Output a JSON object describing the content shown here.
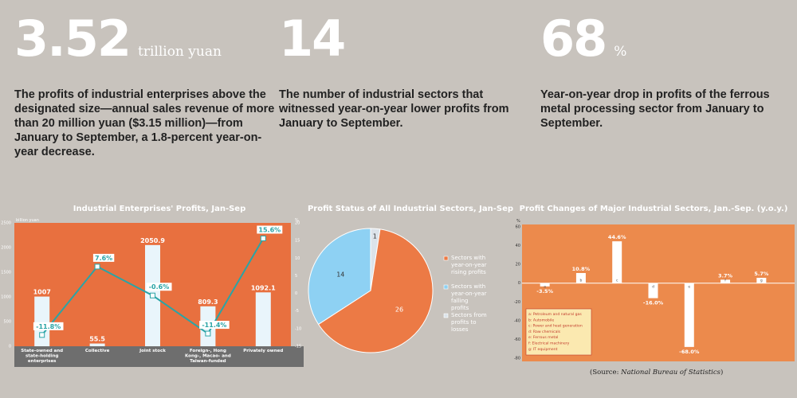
{
  "stats": [
    {
      "value": "3.52",
      "unit": "trillion yuan",
      "desc": "The profits of industrial enterprises above the designated size—annual sales revenue of more than 20 million yuan ($3.15 million)—from January to September, a 1.8-percent year-on-year decrease."
    },
    {
      "value": "14",
      "unit": "",
      "desc": "The number of industrial sectors that witnessed year-on-year lower profits from January to September."
    },
    {
      "value": "68",
      "unit": "%",
      "desc": "Year-on-year drop in profits of the ferrous metal processing sector from January to September."
    }
  ],
  "chart1": {
    "title": "Industrial Enterprises' Profits, Jan-Sep",
    "left_unit": "billion yuan",
    "right_unit": "%"
  },
  "chart2": {
    "title": "Profit Status of All Industrial Sectors, Jan-Sep"
  },
  "chart3": {
    "title": "Profit Changes of Major Industrial Sectors, Jan.-Sep. (y.o.y.)",
    "unit": "%"
  },
  "source": {
    "prefix": "(Source: ",
    "name": "National Bureau of Statistics",
    "suffix": ")"
  },
  "colors": {
    "background": "#c8c3bd",
    "orange_panel": "#e8703f",
    "light_orange_panel": "#ec8a4c",
    "bar_light": "#e9f5fb",
    "line_teal": "#2aa4a6",
    "pie_orange": "#ec7a45",
    "pie_blue": "#8ed1f3",
    "pie_gray": "#dce3ea",
    "footer": "#6e6e6e",
    "legend_box": "#fbe9b0"
  },
  "chart_data": [
    {
      "type": "bar",
      "title": "Industrial Enterprises' Profits, Jan-Sep",
      "categories": [
        "State-owned and state-holding enterprises",
        "Collective",
        "Joint stock",
        "Foreign-, Hong Kong-, Macao- and Taiwan-funded",
        "Privately owned"
      ],
      "series": [
        {
          "values": [
            1007,
            55.5,
            2050.9,
            809.3,
            1092.1
          ],
          "value_labels": [
            "1007",
            "55.5",
            "2050.9",
            "809.3",
            "1092.1"
          ]
        },
        {
          "kind": "line",
          "axis": "right",
          "values": [
            -11.8,
            7.6,
            -0.6,
            -11.4,
            15.6
          ],
          "value_labels": [
            "-11.8%",
            "7.6%",
            "-0.6%",
            "-11.4%",
            "15.6%"
          ]
        }
      ],
      "ylabel": "billion yuan",
      "y2label": "%",
      "ylim": [
        0,
        2500
      ],
      "y2lim": [
        -15,
        20
      ],
      "yticks": [
        "0",
        "500",
        "1000",
        "1500",
        "2000",
        "2500"
      ],
      "y2ticks": [
        "-15",
        "-10",
        "-5",
        "0",
        "5",
        "10",
        "15",
        "20"
      ]
    },
    {
      "type": "pie",
      "title": "Profit Status of All Industrial Sectors, Jan-Sep",
      "labels": [
        "Sectors with year-on-year rising profits",
        "Sectors with year-on-year falling profits",
        "Sectors from profits to losses"
      ],
      "values": [
        26,
        14,
        1
      ],
      "value_labels": [
        "26",
        "14",
        "1"
      ]
    },
    {
      "type": "bar",
      "title": "Profit Changes of Major Industrial Sectors, Jan.-Sep. (y.o.y.)",
      "categories": [
        "a",
        "b",
        "c",
        "d",
        "e",
        "f",
        "g"
      ],
      "values": [
        -3.5,
        10.8,
        44.6,
        -16.0,
        -68.0,
        3.7,
        5.7
      ],
      "value_labels": [
        "-3.5%",
        "10.8%",
        "44.6%",
        "-16.0%",
        "-68.0%",
        "3.7%",
        "5.7%"
      ],
      "legend": [
        "a: Petroleum and natural gas",
        "b: Automobile",
        "c: Power and heat generation",
        "d: Raw chemicals",
        "e: Ferrous metal",
        "f: Electrical machinery",
        "g: IT equipment"
      ],
      "ylabel": "%",
      "ylim": [
        -80,
        60
      ],
      "yticks": [
        "-80",
        "-60",
        "-40",
        "-20",
        "0",
        "20",
        "40",
        "60"
      ]
    }
  ]
}
